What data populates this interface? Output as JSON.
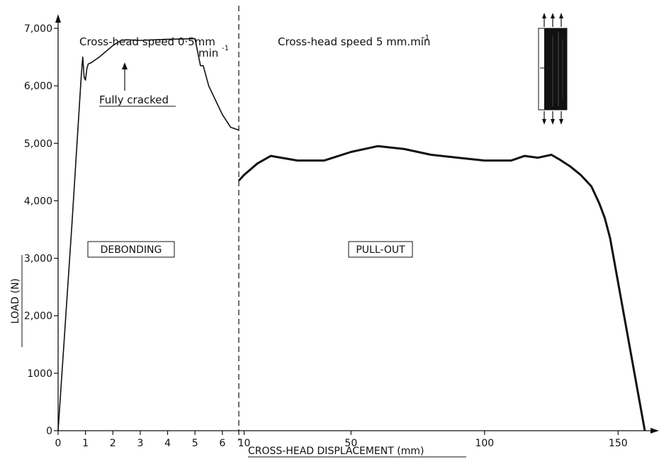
{
  "chart_data": {
    "type": "line",
    "title": "",
    "xlabel": "CROSS-HEAD  DISPLACEMENT (mm)",
    "ylabel": "LOAD (N)",
    "ylim": [
      0,
      7000
    ],
    "grid": false,
    "legend": "none",
    "y_ticks": [
      "0",
      "1000",
      "2,000",
      "3,000",
      "4,000",
      "5,000",
      "6,000",
      "7,000"
    ],
    "x_ticks_left": [
      "0",
      "1",
      "2",
      "3",
      "4",
      "5",
      "6"
    ],
    "x_ticks_right": [
      "10",
      "50",
      "100",
      "150"
    ],
    "panels": [
      {
        "name": "debonding",
        "xlim": [
          0,
          6.6
        ],
        "x": [
          0,
          0.5,
          0.85,
          0.9,
          0.95,
          1.0,
          1.05,
          1.1,
          1.2,
          1.5,
          2.0,
          2.3,
          2.5,
          3.0,
          4.0,
          5.0,
          5.2,
          5.3,
          5.5,
          5.7,
          6.0,
          6.3,
          6.6
        ],
        "y": [
          0,
          3550,
          6200,
          6500,
          6150,
          6100,
          6300,
          6380,
          6400,
          6500,
          6700,
          6790,
          6800,
          6790,
          6810,
          6820,
          6350,
          6350,
          6000,
          5800,
          5500,
          5280,
          5230
        ]
      },
      {
        "name": "pull-out",
        "xlim": [
          8,
          160
        ],
        "x": [
          8,
          10,
          15,
          20,
          30,
          40,
          50,
          60,
          70,
          80,
          90,
          100,
          110,
          115,
          120,
          125,
          128,
          132,
          136,
          140,
          143,
          145,
          147,
          160
        ],
        "y": [
          4350,
          4450,
          4650,
          4780,
          4700,
          4700,
          4850,
          4950,
          4900,
          4800,
          4750,
          4700,
          4700,
          4780,
          4750,
          4800,
          4720,
          4600,
          4450,
          4250,
          3950,
          3700,
          3350,
          0
        ]
      }
    ],
    "annotations": {
      "speed_left": "Cross-head speed 0·5mm",
      "speed_left_unit": "min",
      "speed_left_exp": "-1",
      "speed_right": "Cross-head speed  5 mm.min",
      "speed_right_exp": "-1",
      "fully_cracked": "Fully cracked",
      "debonding": "DEBONDING",
      "pullout": "PULL-OUT"
    }
  }
}
